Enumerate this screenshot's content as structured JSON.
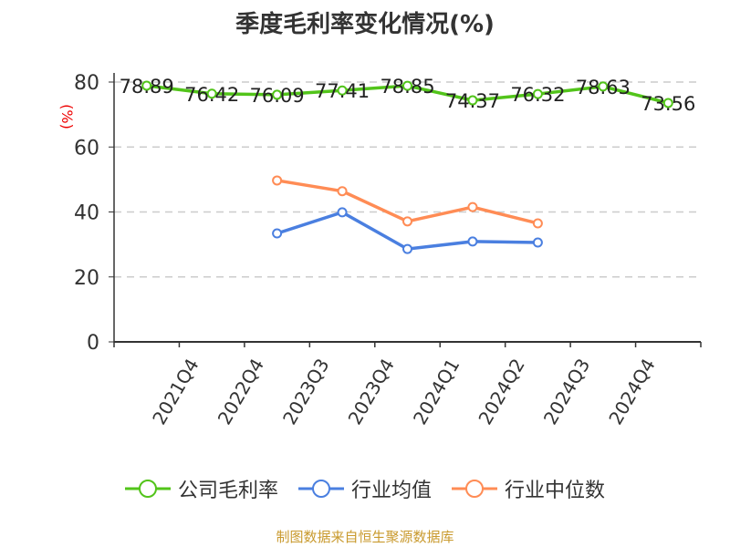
{
  "chart_data": {
    "type": "line",
    "title": "季度毛利率变化情况(%)",
    "ylabel": "(%)",
    "ylim": [
      0,
      80
    ],
    "yticks": [
      0,
      20,
      40,
      60,
      80
    ],
    "grid": true,
    "legend_position": "bottom",
    "categories": [
      "",
      "2021Q4",
      "2022Q4",
      "2023Q3",
      "2023Q4",
      "2024Q1",
      "2024Q2",
      "2024Q3",
      "2024Q4"
    ],
    "series": [
      {
        "name": "公司毛利率",
        "color": "#52c41a",
        "values": [
          78.89,
          76.42,
          76.09,
          77.41,
          78.85,
          74.37,
          76.32,
          78.63,
          73.56
        ],
        "labels": true
      },
      {
        "name": "行业均值",
        "color": "#4a7fe0",
        "values": [
          null,
          null,
          33.4,
          39.9,
          28.6,
          30.9,
          30.6,
          null,
          null
        ]
      },
      {
        "name": "行业中位数",
        "color": "#ff8c55",
        "values": [
          null,
          null,
          49.7,
          46.4,
          37.1,
          41.5,
          36.5,
          null,
          null
        ]
      }
    ]
  },
  "source": "制图数据来自恒生聚源数据库"
}
